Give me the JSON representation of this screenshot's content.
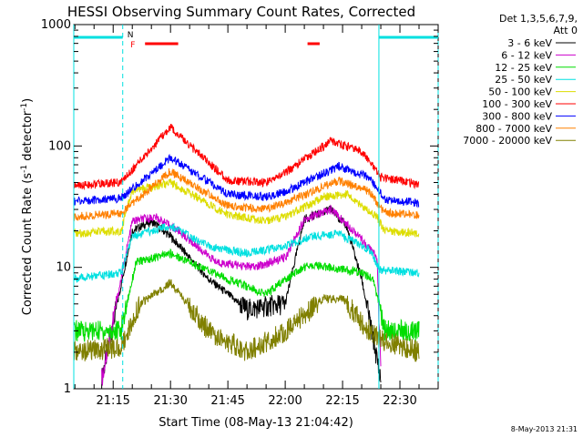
{
  "chart_data": {
    "type": "line",
    "title": "HESSI Observing Summary Count Rates, Corrected",
    "xlabel": "Start Time (08-May-13 21:04:42)",
    "ylabel": "Corrected Count Rate (s⁻¹ detector⁻¹)",
    "ylabel_parts": {
      "main": "Corrected Count Rate (s",
      "sup1": "-1",
      "mid": " detector",
      "sup2": "-1",
      "end": ")"
    },
    "y_scale": "log",
    "ylim": [
      1,
      1000
    ],
    "xlim": [
      "21:04:42",
      "22:40:00"
    ],
    "x_ticks": [
      "21:15",
      "21:30",
      "21:45",
      "22:00",
      "22:15",
      "22:30"
    ],
    "y_ticks": [
      "1",
      "10",
      "100",
      "1000"
    ],
    "legend_header": [
      "Det 1,3,5,6,7,9,",
      "Att 0"
    ],
    "legend_placement": "right",
    "series": [
      {
        "name": "3 - 6 keV",
        "color": "#000000",
        "points": [
          [
            "21:04:42",
            null
          ],
          [
            "21:12",
            1.2
          ],
          [
            "21:20",
            20
          ],
          [
            "21:25",
            24
          ],
          [
            "21:30",
            18
          ],
          [
            "21:40",
            8
          ],
          [
            "21:50",
            4.5
          ],
          [
            "22:00",
            5
          ],
          [
            "22:05",
            25
          ],
          [
            "22:12",
            30
          ],
          [
            "22:16",
            22
          ],
          [
            "22:20",
            8
          ],
          [
            "22:25",
            1.2
          ],
          [
            "22:40",
            null
          ]
        ]
      },
      {
        "name": "6 - 12 keV",
        "color": "#cc00cc",
        "points": [
          [
            "21:12",
            1.2
          ],
          [
            "21:20",
            24
          ],
          [
            "21:26",
            26
          ],
          [
            "21:32",
            20
          ],
          [
            "21:42",
            11
          ],
          [
            "21:52",
            10
          ],
          [
            "22:00",
            12
          ],
          [
            "22:05",
            25
          ],
          [
            "22:12",
            30
          ],
          [
            "22:18",
            20
          ],
          [
            "22:24",
            12
          ],
          [
            "22:25",
            1.5
          ]
        ]
      },
      {
        "name": "12 - 25 keV",
        "color": "#00dd00",
        "points": [
          [
            "21:04:42",
            3
          ],
          [
            "21:17",
            3
          ],
          [
            "21:21",
            11
          ],
          [
            "21:30",
            13
          ],
          [
            "21:45",
            8
          ],
          [
            "21:55",
            6
          ],
          [
            "22:00",
            8
          ],
          [
            "22:06",
            10.5
          ],
          [
            "22:12",
            10
          ],
          [
            "22:20",
            9
          ],
          [
            "22:23",
            8
          ],
          [
            "22:26",
            3
          ],
          [
            "22:35",
            3
          ]
        ]
      },
      {
        "name": "25 - 50 keV",
        "color": "#00e0e0",
        "points": [
          [
            "21:04:42",
            8
          ],
          [
            "21:17",
            9
          ],
          [
            "21:20",
            18
          ],
          [
            "21:30",
            22
          ],
          [
            "21:40",
            15
          ],
          [
            "21:50",
            13
          ],
          [
            "22:00",
            15
          ],
          [
            "22:07",
            18
          ],
          [
            "22:14",
            19
          ],
          [
            "22:22",
            14
          ],
          [
            "22:25",
            9.5
          ],
          [
            "22:35",
            9
          ]
        ]
      },
      {
        "name": "50 - 100 keV",
        "color": "#dddd00",
        "points": [
          [
            "21:04:42",
            19
          ],
          [
            "21:17",
            20
          ],
          [
            "21:20",
            42
          ],
          [
            "21:30",
            50
          ],
          [
            "21:45",
            27
          ],
          [
            "21:55",
            24
          ],
          [
            "22:00",
            26
          ],
          [
            "22:10",
            38
          ],
          [
            "22:16",
            40
          ],
          [
            "22:24",
            26
          ],
          [
            "22:26",
            20
          ],
          [
            "22:35",
            19
          ]
        ]
      },
      {
        "name": "100 - 300 keV",
        "color": "#ff0000",
        "points": [
          [
            "21:04:42",
            47
          ],
          [
            "21:17",
            50
          ],
          [
            "21:30",
            142
          ],
          [
            "21:45",
            52
          ],
          [
            "21:55",
            50
          ],
          [
            "22:00",
            60
          ],
          [
            "22:12",
            110
          ],
          [
            "22:20",
            90
          ],
          [
            "22:25",
            55
          ],
          [
            "22:35",
            48
          ]
        ]
      },
      {
        "name": "300 - 800 keV",
        "color": "#0000ff",
        "points": [
          [
            "21:04:42",
            35
          ],
          [
            "21:17",
            37
          ],
          [
            "21:30",
            80
          ],
          [
            "21:45",
            40
          ],
          [
            "21:55",
            38
          ],
          [
            "22:00",
            42
          ],
          [
            "22:14",
            68
          ],
          [
            "22:22",
            55
          ],
          [
            "22:26",
            36
          ],
          [
            "22:35",
            34
          ]
        ]
      },
      {
        "name": "800 - 7000 keV",
        "color": "#ff8000",
        "points": [
          [
            "21:04:42",
            26
          ],
          [
            "21:17",
            28
          ],
          [
            "21:30",
            62
          ],
          [
            "21:45",
            32
          ],
          [
            "21:55",
            30
          ],
          [
            "22:00",
            34
          ],
          [
            "22:14",
            52
          ],
          [
            "22:22",
            42
          ],
          [
            "22:26",
            28
          ],
          [
            "22:35",
            27
          ]
        ]
      },
      {
        "name": "7000 - 20000 keV",
        "color": "#808000",
        "points": [
          [
            "21:04:42",
            2
          ],
          [
            "21:17",
            2.2
          ],
          [
            "21:22",
            5
          ],
          [
            "21:30",
            7.5
          ],
          [
            "21:40",
            3
          ],
          [
            "21:50",
            2
          ],
          [
            "22:00",
            3
          ],
          [
            "22:10",
            5.5
          ],
          [
            "22:15",
            5.5
          ],
          [
            "22:22",
            3
          ],
          [
            "22:26",
            2.5
          ],
          [
            "22:35",
            2
          ]
        ]
      }
    ],
    "annotations": {
      "flags": [
        {
          "label": "",
          "color": "#00e0e0",
          "start": "21:04:42",
          "end": "21:17:30"
        },
        {
          "label": "N",
          "color": "#00e0e0",
          "start": "21:17:30",
          "end": "21:17:30"
        },
        {
          "label": "F",
          "color": "#ff0000",
          "start": "21:20:00",
          "end": "21:32:00"
        },
        {
          "label": "",
          "color": "#ff0000",
          "start": "22:02:30",
          "end": "22:09:00"
        },
        {
          "label": "",
          "color": "#00e0e0",
          "start": "22:24:30",
          "end": "22:40:00"
        }
      ],
      "vlines_solid": [
        "21:04:42",
        "22:24:30"
      ],
      "vlines_dashed": [
        "21:17:30",
        "22:40:00"
      ]
    },
    "grid": false
  },
  "footer": {
    "timestamp": "8-May-2013 21:31"
  }
}
